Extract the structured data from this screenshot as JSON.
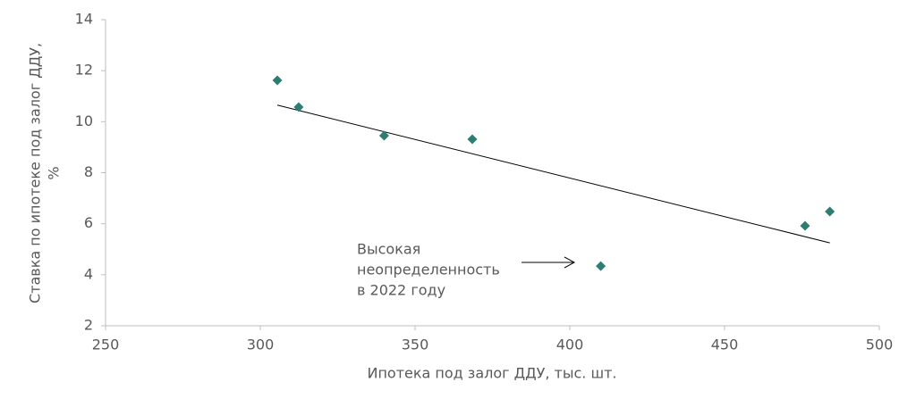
{
  "chart_data": {
    "type": "scatter",
    "x_label": "Ипотека под залог ДДУ, тыс. шт.",
    "y_label": [
      "Ставка по ипотеке под залог ДДУ,",
      "%"
    ],
    "annotation": [
      "Высокая",
      "неопределенность",
      "в 2022 году"
    ],
    "x": [
      305.5,
      312.4,
      340,
      368.5,
      410,
      476,
      484
    ],
    "values": [
      11.62,
      10.57,
      9.45,
      9.31,
      4.34,
      5.92,
      6.48
    ],
    "color": "#2e7d73",
    "trendline": {
      "x": [
        305.5,
        484
      ],
      "y": [
        10.65,
        5.25
      ],
      "color": "#000000"
    },
    "xlim": [
      250,
      500
    ],
    "xticks": [
      250,
      300,
      350,
      400,
      450,
      500
    ],
    "ylim": [
      2,
      14
    ],
    "yticks": [
      2,
      4,
      6,
      8,
      10,
      12,
      14
    ],
    "grid": false
  }
}
